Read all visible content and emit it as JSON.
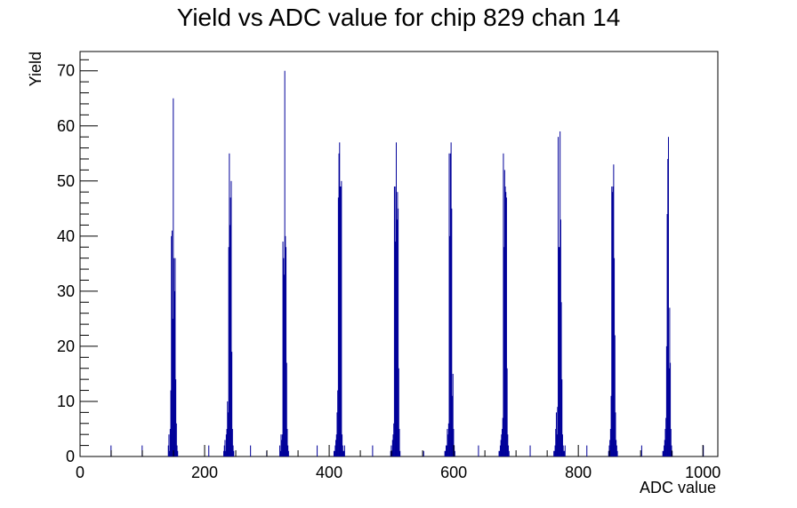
{
  "chart_data": {
    "type": "bar",
    "title": "Yield vs ADC value for chip 829 chan 14",
    "xlabel": "ADC value",
    "ylabel": "Yield",
    "xlim": [
      0,
      1024
    ],
    "ylim": [
      0,
      73.5
    ],
    "xticks": [
      0,
      200,
      400,
      600,
      800,
      1000
    ],
    "yticks": [
      0,
      10,
      20,
      30,
      40,
      50,
      60,
      70
    ],
    "grid": false,
    "line_color": "#000099",
    "series": [
      {
        "x": [
          49,
          99,
          141,
          142,
          143,
          144,
          145,
          146,
          147,
          148,
          149,
          150,
          151,
          152,
          153,
          154,
          155,
          156,
          157,
          158,
          159,
          160,
          161,
          206,
          230,
          231,
          232,
          233,
          234,
          235,
          236,
          237,
          238,
          239,
          240,
          241,
          242,
          243,
          244,
          245,
          246,
          247,
          248,
          249,
          250,
          273,
          299,
          320,
          321,
          322,
          323,
          324,
          325,
          326,
          327,
          328,
          329,
          330,
          331,
          332,
          333,
          334,
          335,
          336,
          337,
          338,
          339,
          340,
          341,
          380,
          407,
          408,
          409,
          410,
          411,
          412,
          413,
          414,
          415,
          416,
          417,
          418,
          419,
          420,
          421,
          422,
          423,
          424,
          425,
          426,
          427,
          428,
          429,
          469,
          498,
          499,
          500,
          501,
          502,
          503,
          504,
          505,
          506,
          507,
          508,
          509,
          510,
          511,
          512,
          513,
          514,
          515,
          516,
          517,
          518,
          519,
          520,
          551,
          585,
          586,
          587,
          588,
          589,
          590,
          591,
          592,
          593,
          594,
          595,
          596,
          597,
          598,
          599,
          600,
          601,
          602,
          603,
          604,
          605,
          606,
          607,
          608,
          609,
          610,
          611,
          612,
          613,
          639,
          672,
          673,
          674,
          675,
          676,
          677,
          678,
          679,
          680,
          681,
          682,
          683,
          684,
          685,
          686,
          687,
          688,
          689,
          690,
          691,
          692,
          693,
          694,
          695,
          696,
          697,
          698,
          699,
          700,
          722,
          760,
          761,
          762,
          763,
          764,
          765,
          766,
          767,
          768,
          769,
          770,
          771,
          772,
          773,
          774,
          775,
          776,
          777,
          778,
          779,
          780,
          781,
          782,
          783,
          784,
          785,
          786,
          787,
          788,
          789,
          790,
          813,
          848,
          849,
          850,
          851,
          852,
          853,
          854,
          855,
          856,
          857,
          858,
          859,
          860,
          861,
          862,
          863,
          864,
          865,
          866,
          867,
          868,
          869,
          870,
          871,
          872,
          873,
          874,
          875,
          876,
          877,
          878,
          901,
          935,
          936,
          937,
          938,
          939,
          940,
          941,
          942,
          943,
          944,
          945,
          946,
          947,
          948,
          949,
          950,
          951,
          952,
          953,
          954,
          955,
          956,
          957,
          958,
          959,
          960,
          961,
          962,
          963,
          964,
          965,
          966,
          1000
        ],
        "values": [
          2,
          2,
          2,
          4,
          1,
          5,
          12,
          40,
          41,
          25,
          65,
          36,
          30,
          36,
          14,
          6,
          2,
          1,
          0,
          0,
          0,
          0,
          0,
          2,
          1,
          2,
          3,
          1,
          4,
          5,
          10,
          8,
          38,
          55,
          42,
          47,
          50,
          19,
          5,
          2,
          1,
          0,
          0,
          0,
          0,
          2,
          1,
          2,
          1,
          4,
          3,
          4,
          39,
          36,
          33,
          70,
          40,
          38,
          17,
          5,
          2,
          1,
          0,
          0,
          0,
          0,
          0,
          0,
          0,
          2,
          1,
          1,
          2,
          3,
          4,
          8,
          12,
          47,
          55,
          57,
          49,
          49,
          50,
          4,
          2,
          1,
          1,
          2,
          0,
          0,
          0,
          0,
          0,
          2,
          1,
          2,
          1,
          3,
          4,
          6,
          49,
          49,
          39,
          57,
          43,
          48,
          45,
          16,
          5,
          1,
          0,
          0,
          0,
          0,
          0,
          0,
          0,
          1,
          1,
          1,
          2,
          2,
          5,
          4,
          6,
          55,
          40,
          55,
          57,
          45,
          11,
          15,
          5,
          2,
          1,
          0,
          0,
          0,
          0,
          0,
          0,
          0,
          0,
          0,
          0,
          0,
          0,
          2,
          1,
          1,
          2,
          3,
          4,
          5,
          7,
          55,
          38,
          52,
          49,
          48,
          47,
          16,
          4,
          2,
          1,
          0,
          0,
          0,
          0,
          0,
          0,
          0,
          0,
          0,
          0,
          0,
          0,
          2,
          1,
          1,
          2,
          5,
          8,
          4,
          9,
          58,
          38,
          38,
          59,
          43,
          28,
          14,
          4,
          2,
          1,
          1,
          2,
          0,
          0,
          0,
          0,
          0,
          0,
          0,
          0,
          0,
          0,
          0,
          0,
          2,
          1,
          2,
          3,
          5,
          11,
          49,
          48,
          49,
          53,
          36,
          22,
          8,
          3,
          2,
          1,
          0,
          0,
          0,
          0,
          0,
          0,
          0,
          0,
          0,
          0,
          0,
          0,
          0,
          0,
          0,
          0,
          2,
          1,
          1,
          2,
          3,
          5,
          7,
          20,
          44,
          54,
          58,
          16,
          27,
          17,
          5,
          2,
          1,
          0,
          0,
          0,
          0,
          0,
          0,
          0,
          0,
          0,
          0,
          0,
          0,
          0,
          0,
          0,
          0,
          2
        ]
      }
    ]
  }
}
